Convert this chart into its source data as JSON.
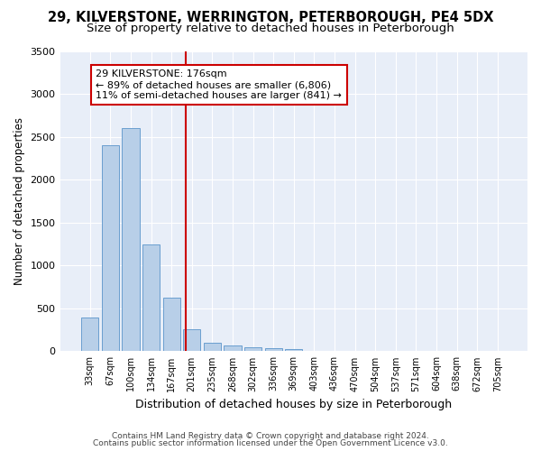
{
  "title1": "29, KILVERSTONE, WERRINGTON, PETERBOROUGH, PE4 5DX",
  "title2": "Size of property relative to detached houses in Peterborough",
  "xlabel": "Distribution of detached houses by size in Peterborough",
  "ylabel": "Number of detached properties",
  "categories": [
    "33sqm",
    "67sqm",
    "100sqm",
    "134sqm",
    "167sqm",
    "201sqm",
    "235sqm",
    "268sqm",
    "302sqm",
    "336sqm",
    "369sqm",
    "403sqm",
    "436sqm",
    "470sqm",
    "504sqm",
    "537sqm",
    "571sqm",
    "604sqm",
    "638sqm",
    "672sqm",
    "705sqm"
  ],
  "values": [
    390,
    2400,
    2600,
    1250,
    620,
    260,
    100,
    65,
    50,
    35,
    25,
    0,
    0,
    0,
    0,
    0,
    0,
    0,
    0,
    0,
    0
  ],
  "bar_color": "#b8cfe8",
  "bar_edge_color": "#6a9fd0",
  "vline_color": "#cc0000",
  "annotation_text": "29 KILVERSTONE: 176sqm\n← 89% of detached houses are smaller (6,806)\n11% of semi-detached houses are larger (841) →",
  "annotation_box_color": "#ffffff",
  "annotation_box_edge": "#cc0000",
  "ylim": [
    0,
    3500
  ],
  "yticks": [
    0,
    500,
    1000,
    1500,
    2000,
    2500,
    3000,
    3500
  ],
  "background_color": "#e8eef8",
  "footer1": "Contains HM Land Registry data © Crown copyright and database right 2024.",
  "footer2": "Contains public sector information licensed under the Open Government Licence v3.0.",
  "title_fontsize": 10.5,
  "subtitle_fontsize": 9.5,
  "vline_pos": 4.72
}
